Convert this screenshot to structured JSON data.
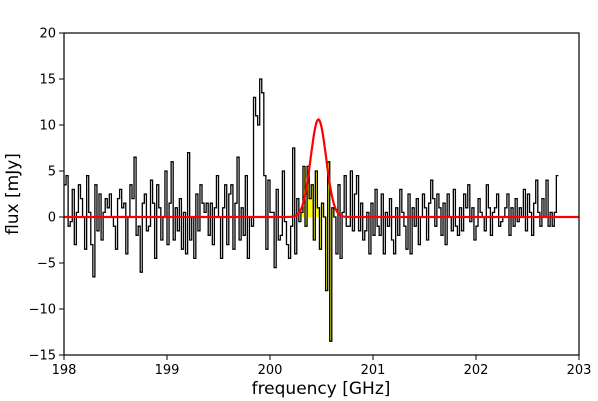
{
  "chart_data": {
    "type": "line",
    "xlabel": "frequency [GHz]",
    "ylabel": "flux [mJy]",
    "xlim": [
      198,
      203
    ],
    "ylim": [
      -15,
      20
    ],
    "x_ticks": [
      "198",
      "199",
      "200",
      "201",
      "202",
      "203"
    ],
    "y_ticks": [
      "−15",
      "−10",
      "−5",
      "0",
      "5",
      "10",
      "15",
      "20"
    ],
    "grid": false,
    "legend": "none",
    "series": [
      {
        "style": "step",
        "color": "#000000",
        "x_start": 198.0,
        "x_step": 0.02,
        "values": [
          3.5,
          4.5,
          -1.0,
          -0.5,
          3.0,
          -3.0,
          0.5,
          3.5,
          2.0,
          0.0,
          -3.5,
          4.5,
          0.5,
          -3.0,
          -6.5,
          3.5,
          -1.5,
          2.5,
          -2.5,
          0.5,
          2.0,
          1.0,
          2.5,
          0.0,
          -1.0,
          -3.5,
          2.0,
          3.0,
          1.0,
          1.5,
          -4.0,
          0.0,
          3.5,
          2.0,
          6.5,
          -2.0,
          -1.0,
          -6.0,
          1.5,
          2.5,
          -1.5,
          -1.0,
          4.0,
          1.5,
          -4.5,
          3.5,
          1.0,
          -2.5,
          0.0,
          5.0,
          -3.0,
          1.5,
          6.0,
          -2.5,
          1.0,
          -1.5,
          2.0,
          -3.5,
          0.5,
          -4.0,
          7.0,
          -2.5,
          0.0,
          -4.5,
          2.5,
          -1.5,
          3.5,
          1.5,
          0.5,
          1.5,
          -2.0,
          1.5,
          -3.0,
          1.0,
          4.5,
          0.0,
          -4.5,
          1.0,
          3.5,
          -3.0,
          2.5,
          3.5,
          -3.5,
          1.5,
          6.5,
          -2.5,
          1.0,
          -2.0,
          4.5,
          -4.5,
          0.0,
          -1.0,
          13.0,
          11.0,
          10.0,
          15.0,
          13.5,
          4.5,
          -3.5,
          4.0,
          0.5,
          0.5,
          -5.5,
          3.0,
          -2.5,
          -2.0,
          5.0,
          -0.5,
          -3.0,
          -4.5,
          -1.0,
          7.5,
          -4.0,
          2.0,
          -0.5,
          0.5,
          5.5,
          -1.0,
          5.5,
          2.0,
          3.5,
          -2.5,
          5.0,
          1.0,
          -3.5,
          1.5,
          0.0,
          -8.0,
          6.0,
          -13.5,
          1.0,
          0.0,
          -4.0,
          3.5,
          -4.5,
          0.5,
          4.5,
          -1.0,
          -1.0,
          5.0,
          -1.5,
          2.5,
          4.5,
          -1.5,
          1.5,
          -2.5,
          -1.5,
          0.5,
          -4.0,
          1.5,
          -2.0,
          3.0,
          -1.0,
          -2.0,
          2.5,
          -4.0,
          0.5,
          -1.0,
          2.0,
          -2.5,
          -4.0,
          1.0,
          -2.0,
          3.0,
          0.5,
          -1.0,
          -3.5,
          2.5,
          -4.0,
          1.0,
          -1.0,
          2.0,
          -3.0,
          0.0,
          2.5,
          1.0,
          -2.5,
          1.5,
          4.0,
          2.0,
          -1.0,
          2.5,
          1.0,
          -2.0,
          1.5,
          -3.0,
          2.5,
          0.0,
          -1.5,
          3.0,
          -1.0,
          -2.0,
          1.0,
          -1.5,
          2.5,
          1.0,
          3.5,
          -0.5,
          1.0,
          -2.5,
          -1.0,
          2.0,
          0.5,
          0.0,
          -1.5,
          3.5,
          1.0,
          -2.0,
          0.5,
          1.0,
          2.5,
          -1.0,
          -0.5,
          0.0,
          1.0,
          2.5,
          -2.0,
          1.0,
          -1.0,
          2.0,
          -0.5,
          1.0,
          0.0,
          3.0,
          -1.5,
          2.5,
          0.5,
          -2.0,
          1.5,
          4.0,
          0.5,
          -1.0,
          2.0,
          0.0,
          4.0,
          -1.0,
          0.5,
          -1.0,
          0.5,
          4.5
        ]
      },
      {
        "style": "fill",
        "color": "#ffff00",
        "x_range": [
          200.3,
          200.62
        ]
      },
      {
        "style": "gaussian",
        "color": "#ff0000",
        "amplitude": 10.6,
        "center": 200.47,
        "sigma": 0.075,
        "x_range": [
          198,
          203
        ]
      }
    ]
  }
}
